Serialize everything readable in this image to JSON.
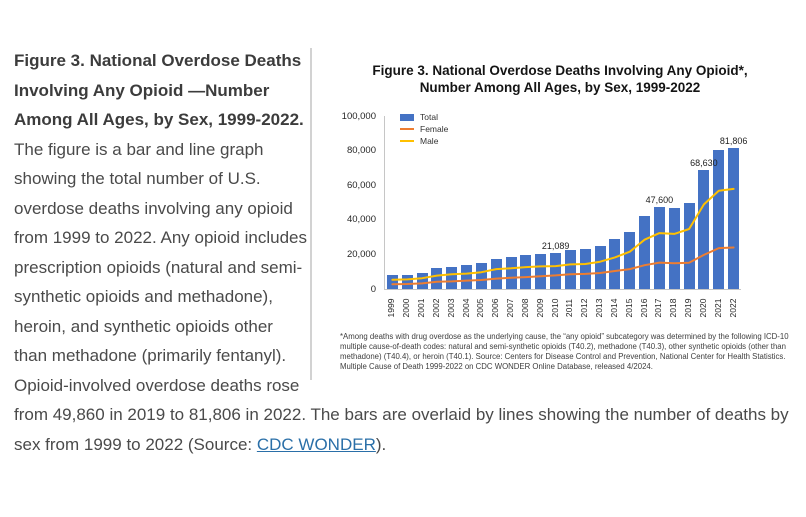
{
  "description": {
    "bold": "Figure 3. National Overdose Deaths Involving Any Opioid —Number Among All Ages, by Sex, 1999-2022.",
    "text": " The figure is a bar and line graph showing the total number of U.S. overdose deaths involving any opioid from 1999 to 2022. Any opioid includes prescription opioids (natural and semi-synthetic opioids and methadone), heroin, and synthetic opioids other than methadone (primarily fentanyl). Opioid-involved overdose deaths rose from 49,860 in 2019 to 81,806 in 2022. The bars are overlaid by lines showing the number of deaths by sex from 1999 to 2022 (Source: ",
    "link_text": "CDC WONDER",
    "after_link": ")."
  },
  "chart": {
    "title_lines": [
      "Figure 3. National Overdose Deaths Involving Any Opioid*,",
      "Number Among All Ages, by Sex, 1999-2022"
    ],
    "footnote": "*Among deaths with drug overdose as the underlying cause, the “any opioid” subcategory was determined by the following ICD-10 multiple cause-of-death codes: natural and semi-synthetic opioids (T40.2), methadone (T40.3), other synthetic opioids (other than methadone) (T40.4), or heroin (T40.1). Source: Centers for Disease Control and Prevention, National Center for Health Statistics. Multiple Cause of Death 1999-2022 on CDC WONDER Online Database, released 4/2024."
  },
  "chart_data": {
    "type": "bar",
    "title": "Figure 3. National Overdose Deaths Involving Any Opioid*, Number Among All Ages, by Sex, 1999-2022",
    "categories": [
      "1999",
      "2000",
      "2001",
      "2002",
      "2003",
      "2004",
      "2005",
      "2006",
      "2007",
      "2008",
      "2009",
      "2010",
      "2011",
      "2012",
      "2013",
      "2014",
      "2015",
      "2016",
      "2017",
      "2018",
      "2019",
      "2020",
      "2021",
      "2022"
    ],
    "series": [
      {
        "name": "Total",
        "kind": "bar",
        "color": "#4472C4",
        "values": [
          8048,
          8407,
          9496,
          11920,
          12940,
          13756,
          14918,
          17545,
          18516,
          19582,
          20422,
          21089,
          22784,
          23166,
          25052,
          28647,
          33091,
          42249,
          47600,
          46802,
          49860,
          68630,
          80411,
          81806
        ]
      },
      {
        "name": "Female",
        "kind": "line",
        "color": "#ED7D31",
        "values": [
          2747,
          2862,
          3251,
          4149,
          4400,
          4872,
          5191,
          6027,
          6548,
          6903,
          7375,
          7841,
          8559,
          8712,
          9250,
          10406,
          11529,
          13753,
          15263,
          14931,
          15202,
          19733,
          23649,
          23967
        ]
      },
      {
        "name": "Male",
        "kind": "line",
        "color": "#FFC000",
        "values": [
          5301,
          5545,
          6245,
          7771,
          8540,
          8884,
          9727,
          11518,
          11968,
          12679,
          13047,
          13248,
          14225,
          14454,
          15802,
          18241,
          21562,
          28496,
          32337,
          31871,
          34658,
          48897,
          56762,
          57839
        ]
      }
    ],
    "annotations": [
      {
        "category": "2010",
        "label": "21,089"
      },
      {
        "category": "2017",
        "label": "47,600"
      },
      {
        "category": "2020",
        "label": "68,630"
      },
      {
        "category": "2022",
        "label": "81,806"
      }
    ],
    "ylim": [
      0,
      100000
    ],
    "yticks": [
      {
        "value": 0,
        "label": "0"
      },
      {
        "value": 20000,
        "label": "20,000"
      },
      {
        "value": 40000,
        "label": "40,000"
      },
      {
        "value": 60000,
        "label": "60,000"
      },
      {
        "value": 80000,
        "label": "80,000"
      },
      {
        "value": 100000,
        "label": "100,000"
      }
    ],
    "legend_position": "top-left",
    "grid": false
  },
  "colors": {
    "bar": "#4472C4",
    "female_line": "#ED7D31",
    "male_line": "#FFC000",
    "divider": "#d2d2d2",
    "link": "#2a6fa8",
    "body_text": "#4a4a4a"
  }
}
